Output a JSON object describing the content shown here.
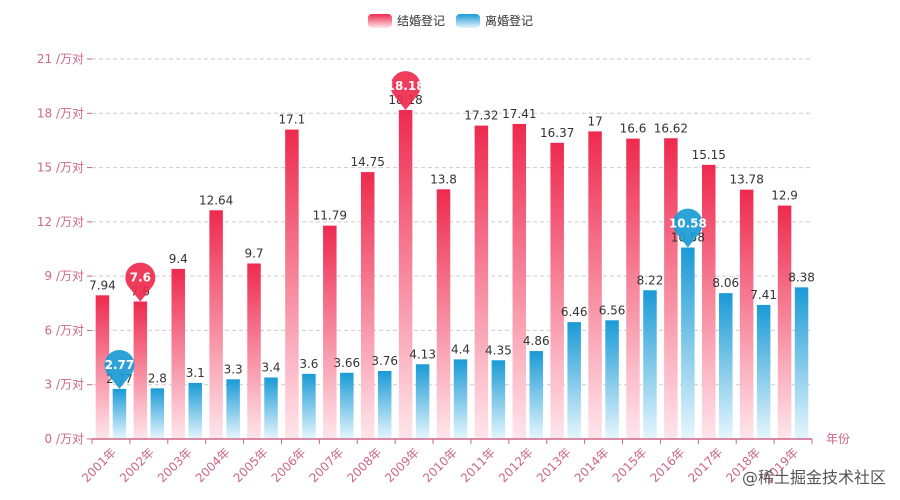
{
  "chart_data": {
    "type": "bar",
    "legend": {
      "position": "top-center"
    },
    "categories": [
      "2001年",
      "2002年",
      "2003年",
      "2004年",
      "2005年",
      "2006年",
      "2007年",
      "2008年",
      "2009年",
      "2010年",
      "2011年",
      "2012年",
      "2013年",
      "2014年",
      "2015年",
      "2016年",
      "2017年",
      "2018年",
      "2019年"
    ],
    "series": [
      {
        "name": "结婚登记",
        "color_top": "#ee2a4e",
        "color_bottom": "#ffe6ec",
        "values": [
          7.94,
          7.6,
          9.4,
          12.64,
          9.7,
          17.1,
          11.79,
          14.75,
          18.18,
          13.8,
          17.32,
          17.41,
          16.37,
          17,
          16.6,
          16.62,
          15.15,
          13.78,
          12.9
        ],
        "max_marker": {
          "category": "2009年",
          "value": 18.18
        },
        "min_marker": {
          "category": "2002年",
          "value": 7.6
        }
      },
      {
        "name": "离婚登记",
        "color_top": "#1a9ad6",
        "color_bottom": "#e6f6fd",
        "values": [
          2.77,
          2.8,
          3.1,
          3.3,
          3.4,
          3.6,
          3.66,
          3.76,
          4.13,
          4.4,
          4.35,
          4.86,
          6.46,
          6.56,
          8.22,
          10.58,
          8.06,
          7.41,
          8.38
        ],
        "max_marker": {
          "category": "2016年",
          "value": 10.58
        },
        "min_marker": {
          "category": "2001年",
          "value": 2.77
        }
      }
    ],
    "ylim": [
      0,
      21
    ],
    "yticks": [
      0,
      3,
      6,
      9,
      12,
      15,
      18,
      21
    ],
    "ytick_suffix": " /万对",
    "xlabel": "年份",
    "ylabel": "",
    "grid": "horizontal-dashed"
  },
  "watermark": "@稀土掘金技术社区"
}
